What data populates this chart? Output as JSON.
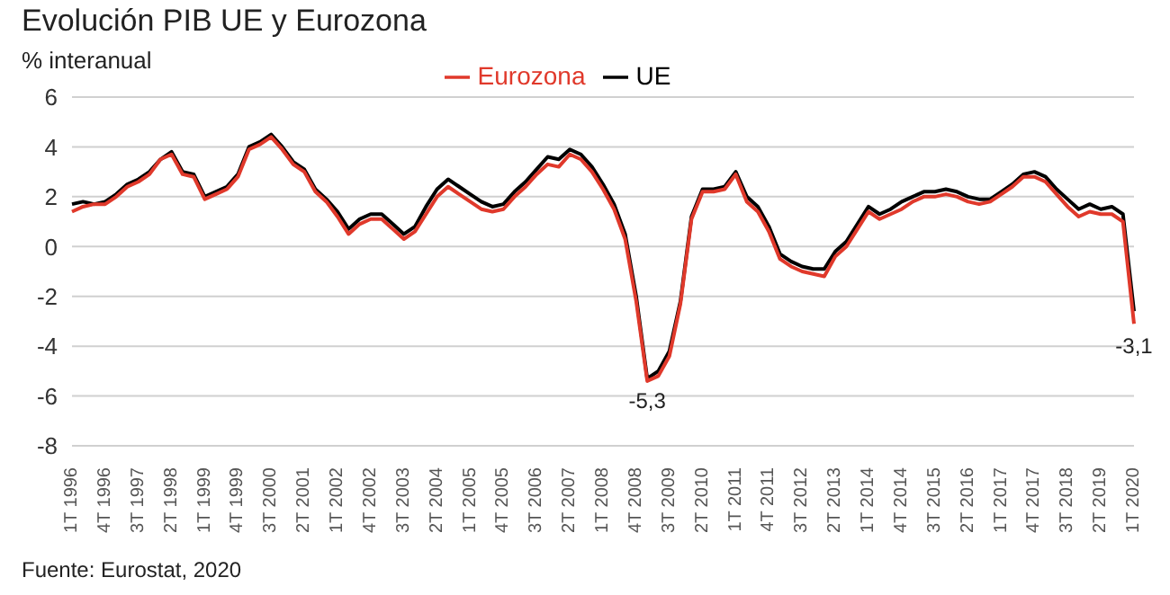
{
  "chart_data": {
    "type": "line",
    "title": "Evolución PIB UE y Eurozona",
    "subtitle": "% interanual",
    "categories": [
      "1T 1996",
      null,
      null,
      "4T 1996",
      null,
      null,
      "3T 1997",
      null,
      null,
      "2T 1998",
      null,
      null,
      "1T 1999",
      null,
      null,
      "4T 1999",
      null,
      null,
      "3T 2000",
      null,
      null,
      "2T 2001",
      null,
      null,
      "1T 2002",
      null,
      null,
      "4T 2002",
      null,
      null,
      "3T 2003",
      null,
      null,
      "2T 2004",
      null,
      null,
      "1T 2005",
      null,
      null,
      "4T 2005",
      null,
      null,
      "3T 2006",
      null,
      null,
      "2T 2007",
      null,
      null,
      "1T 2008",
      null,
      null,
      "4T 2008",
      null,
      null,
      "3T 2009",
      null,
      null,
      "2T 2010",
      null,
      null,
      "1T 2011",
      null,
      null,
      "4T 2011",
      null,
      null,
      "3T 2012",
      null,
      null,
      "2T 2013",
      null,
      null,
      "1T 2014",
      null,
      null,
      "4T 2014",
      null,
      null,
      "3T 2015",
      null,
      null,
      "2T 2016",
      null,
      null,
      "1T 2017",
      null,
      null,
      "4T 2017",
      null,
      null,
      "3T 2018",
      null,
      null,
      "2T 2019",
      null,
      null,
      "1T 2020"
    ],
    "series": [
      {
        "name": "UE",
        "color": "#000000",
        "values": [
          1.7,
          1.8,
          1.7,
          1.8,
          2.1,
          2.5,
          2.7,
          3.0,
          3.5,
          3.8,
          3.0,
          2.9,
          2.0,
          2.2,
          2.4,
          2.9,
          4.0,
          4.2,
          4.5,
          4.0,
          3.4,
          3.1,
          2.3,
          1.9,
          1.4,
          0.7,
          1.1,
          1.3,
          1.3,
          0.9,
          0.5,
          0.8,
          1.6,
          2.3,
          2.7,
          2.4,
          2.1,
          1.8,
          1.6,
          1.7,
          2.2,
          2.6,
          3.1,
          3.6,
          3.5,
          3.9,
          3.7,
          3.2,
          2.5,
          1.7,
          0.5,
          -2.0,
          -5.3,
          -5.0,
          -4.2,
          -2.2,
          1.2,
          2.3,
          2.3,
          2.4,
          3.0,
          2.0,
          1.6,
          0.8,
          -0.3,
          -0.6,
          -0.8,
          -0.9,
          -0.9,
          -0.2,
          0.2,
          0.9,
          1.6,
          1.3,
          1.5,
          1.8,
          2.0,
          2.2,
          2.2,
          2.3,
          2.2,
          2.0,
          1.9,
          1.9,
          2.2,
          2.5,
          2.9,
          3.0,
          2.8,
          2.3,
          1.9,
          1.5,
          1.7,
          1.5,
          1.6,
          1.3,
          -2.6
        ]
      },
      {
        "name": "Eurozona",
        "color": "#e0392b",
        "values": [
          1.4,
          1.6,
          1.7,
          1.7,
          2.0,
          2.4,
          2.6,
          2.9,
          3.5,
          3.7,
          2.9,
          2.8,
          1.9,
          2.1,
          2.3,
          2.8,
          3.9,
          4.1,
          4.4,
          3.9,
          3.3,
          3.0,
          2.2,
          1.8,
          1.2,
          0.5,
          0.9,
          1.1,
          1.1,
          0.7,
          0.3,
          0.6,
          1.3,
          2.0,
          2.4,
          2.1,
          1.8,
          1.5,
          1.4,
          1.5,
          2.0,
          2.4,
          2.9,
          3.3,
          3.2,
          3.7,
          3.5,
          3.0,
          2.3,
          1.5,
          0.3,
          -2.2,
          -5.4,
          -5.2,
          -4.4,
          -2.3,
          1.1,
          2.2,
          2.2,
          2.3,
          2.9,
          1.8,
          1.4,
          0.6,
          -0.5,
          -0.8,
          -1.0,
          -1.1,
          -1.2,
          -0.4,
          0.0,
          0.7,
          1.4,
          1.1,
          1.3,
          1.5,
          1.8,
          2.0,
          2.0,
          2.1,
          2.0,
          1.8,
          1.7,
          1.8,
          2.1,
          2.4,
          2.8,
          2.8,
          2.6,
          2.1,
          1.6,
          1.2,
          1.4,
          1.3,
          1.3,
          1.0,
          -3.1
        ]
      }
    ],
    "ylim": [
      -8,
      6
    ],
    "yticks": [
      -8,
      -6,
      -4,
      -2,
      0,
      2,
      4,
      6
    ],
    "grid": "y",
    "legend": "top",
    "marker": "none",
    "line_style": "solid",
    "annotations": [
      {
        "text": "-5,3",
        "y": -5.3
      },
      {
        "text": "-3,1",
        "x": "1T 2020",
        "y": -3.1
      },
      "Fuente: Eurostat, 2020"
    ]
  }
}
